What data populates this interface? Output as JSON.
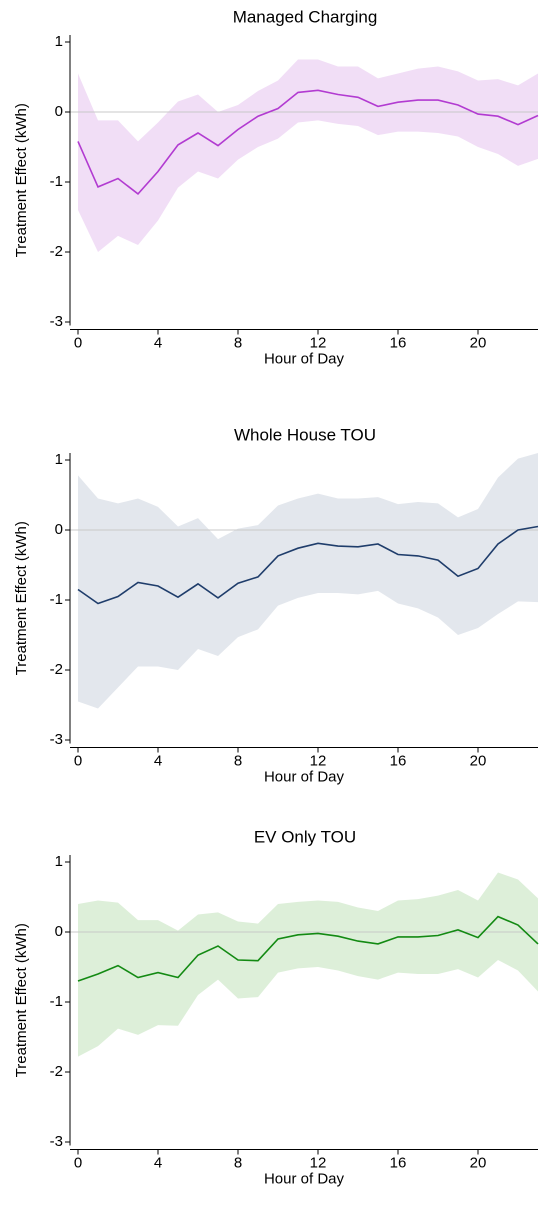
{
  "chart_data": [
    {
      "type": "line",
      "title": "Managed Charging",
      "xlabel": "Hour of Day",
      "ylabel": "Treatment Effect (kWh)",
      "x": [
        0,
        1,
        2,
        3,
        4,
        5,
        6,
        7,
        8,
        9,
        10,
        11,
        12,
        13,
        14,
        15,
        16,
        17,
        18,
        19,
        20,
        21,
        22,
        23
      ],
      "values": [
        -0.42,
        -1.07,
        -0.95,
        -1.17,
        -0.85,
        -0.47,
        -0.3,
        -0.48,
        -0.25,
        -0.06,
        0.05,
        0.28,
        0.31,
        0.25,
        0.21,
        0.08,
        0.14,
        0.17,
        0.17,
        0.1,
        -0.03,
        -0.06,
        -0.18,
        -0.05
      ],
      "upper": [
        0.55,
        -0.12,
        -0.12,
        -0.42,
        -0.15,
        0.15,
        0.25,
        0.0,
        0.1,
        0.3,
        0.45,
        0.75,
        0.75,
        0.65,
        0.65,
        0.48,
        0.55,
        0.62,
        0.65,
        0.58,
        0.45,
        0.47,
        0.38,
        0.55
      ],
      "lower": [
        -1.4,
        -2.0,
        -1.77,
        -1.9,
        -1.55,
        -1.08,
        -0.85,
        -0.95,
        -0.68,
        -0.5,
        -0.38,
        -0.15,
        -0.12,
        -0.17,
        -0.2,
        -0.33,
        -0.28,
        -0.28,
        -0.3,
        -0.35,
        -0.5,
        -0.6,
        -0.77,
        -0.67
      ],
      "color": "#b23bd1",
      "band_color": "#f1def6",
      "xlim": [
        -0.4,
        23
      ],
      "xticks": [
        0,
        4,
        8,
        12,
        16,
        20
      ],
      "ylim": [
        -3.05,
        1.1
      ],
      "yticks": [
        -3,
        -2,
        -1,
        0,
        1
      ],
      "reference_line": 0
    },
    {
      "type": "line",
      "title": "Whole House TOU",
      "xlabel": "Hour of Day",
      "ylabel": "Treatment Effect (kWh)",
      "x": [
        0,
        1,
        2,
        3,
        4,
        5,
        6,
        7,
        8,
        9,
        10,
        11,
        12,
        13,
        14,
        15,
        16,
        17,
        18,
        19,
        20,
        21,
        22,
        23
      ],
      "values": [
        -0.85,
        -1.05,
        -0.95,
        -0.75,
        -0.8,
        -0.96,
        -0.77,
        -0.97,
        -0.76,
        -0.67,
        -0.37,
        -0.26,
        -0.19,
        -0.23,
        -0.24,
        -0.2,
        -0.35,
        -0.37,
        -0.43,
        -0.66,
        -0.55,
        -0.2,
        0.0,
        0.05
      ],
      "upper": [
        0.78,
        0.45,
        0.38,
        0.45,
        0.33,
        0.05,
        0.17,
        -0.13,
        0.02,
        0.07,
        0.35,
        0.45,
        0.52,
        0.45,
        0.45,
        0.47,
        0.37,
        0.4,
        0.38,
        0.18,
        0.3,
        0.75,
        1.02,
        1.1
      ],
      "lower": [
        -2.45,
        -2.55,
        -2.25,
        -1.95,
        -1.95,
        -2.0,
        -1.7,
        -1.8,
        -1.53,
        -1.42,
        -1.08,
        -0.97,
        -0.9,
        -0.9,
        -0.92,
        -0.87,
        -1.05,
        -1.12,
        -1.25,
        -1.5,
        -1.4,
        -1.2,
        -1.02,
        -1.03
      ],
      "color": "#1f3d6b",
      "band_color": "#e3e7ed",
      "xlim": [
        -0.4,
        23
      ],
      "xticks": [
        0,
        4,
        8,
        12,
        16,
        20
      ],
      "ylim": [
        -3.05,
        1.1
      ],
      "yticks": [
        -3,
        -2,
        -1,
        0,
        1
      ],
      "reference_line": 0
    },
    {
      "type": "line",
      "title": "EV Only TOU",
      "xlabel": "Hour of Day",
      "ylabel": "Treatment Effect (kWh)",
      "x": [
        0,
        1,
        2,
        3,
        4,
        5,
        6,
        7,
        8,
        9,
        10,
        11,
        12,
        13,
        14,
        15,
        16,
        17,
        18,
        19,
        20,
        21,
        22,
        23
      ],
      "values": [
        -0.7,
        -0.6,
        -0.48,
        -0.65,
        -0.58,
        -0.65,
        -0.33,
        -0.2,
        -0.4,
        -0.41,
        -0.1,
        -0.04,
        -0.02,
        -0.06,
        -0.13,
        -0.17,
        -0.07,
        -0.07,
        -0.05,
        0.03,
        -0.08,
        0.22,
        0.1,
        -0.17
      ],
      "upper": [
        0.4,
        0.45,
        0.42,
        0.17,
        0.17,
        0.02,
        0.25,
        0.28,
        0.15,
        0.12,
        0.4,
        0.43,
        0.45,
        0.43,
        0.35,
        0.3,
        0.45,
        0.47,
        0.52,
        0.6,
        0.45,
        0.85,
        0.75,
        0.48
      ],
      "lower": [
        -1.78,
        -1.63,
        -1.38,
        -1.47,
        -1.33,
        -1.34,
        -0.9,
        -0.68,
        -0.95,
        -0.93,
        -0.58,
        -0.52,
        -0.5,
        -0.55,
        -0.63,
        -0.68,
        -0.58,
        -0.6,
        -0.6,
        -0.53,
        -0.65,
        -0.4,
        -0.55,
        -0.85
      ],
      "color": "#138a13",
      "band_color": "#ddefd9",
      "xlim": [
        -0.4,
        23
      ],
      "xticks": [
        0,
        4,
        8,
        12,
        16,
        20
      ],
      "ylim": [
        -3.05,
        1.1
      ],
      "yticks": [
        -3,
        -2,
        -1,
        0,
        1
      ],
      "reference_line": 0
    }
  ]
}
